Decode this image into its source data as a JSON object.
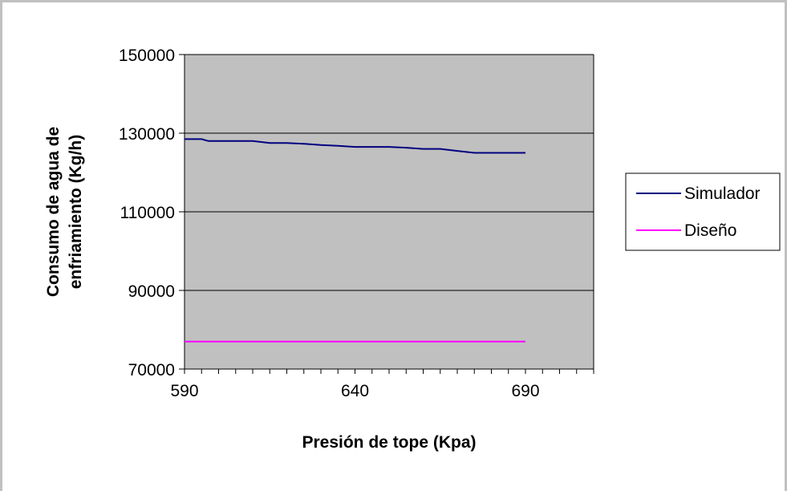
{
  "chart_data": {
    "type": "line",
    "title": "",
    "xlabel": "Presión de tope (Kpa)",
    "ylabel": [
      "Consumo de agua de",
      "enfriamiento (Kg/h)"
    ],
    "xlim": [
      590,
      710
    ],
    "ylim": [
      70000,
      150000
    ],
    "xticks": [
      590,
      640,
      690
    ],
    "yticks": [
      70000,
      90000,
      110000,
      130000,
      150000
    ],
    "grid": "horizontal",
    "plot_background": "#c0c0c0",
    "legend_position": "right",
    "series": [
      {
        "name": "Simulador",
        "color": "#000080",
        "x": [
          590,
          595,
          597,
          600,
          605,
          610,
          615,
          620,
          625,
          630,
          635,
          640,
          645,
          650,
          655,
          660,
          665,
          670,
          675,
          680,
          685,
          690
        ],
        "y": [
          128500,
          128500,
          128000,
          128000,
          128000,
          128000,
          127500,
          127500,
          127300,
          127000,
          126800,
          126500,
          126500,
          126500,
          126300,
          126000,
          126000,
          125500,
          125000,
          125000,
          125000,
          125000
        ]
      },
      {
        "name": "Diseño",
        "color": "#ff00ff",
        "x": [
          590,
          690
        ],
        "y": [
          77000,
          77000
        ]
      }
    ]
  }
}
